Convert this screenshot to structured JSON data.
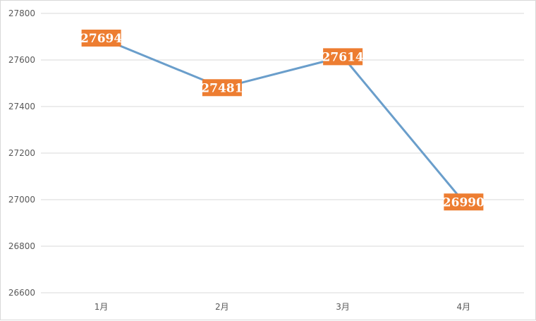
{
  "chart_data": {
    "type": "line",
    "categories": [
      "1月",
      "2月",
      "3月",
      "4月"
    ],
    "series": [
      {
        "values": [
          27694,
          27481,
          27614,
          26990
        ]
      }
    ],
    "y_ticks": [
      "27800",
      "27600",
      "27400",
      "27200",
      "27000",
      "26800",
      "26600"
    ],
    "ylim": [
      26600,
      27800
    ],
    "title": "",
    "xlabel": "",
    "ylabel": "",
    "grid": true,
    "legend": "none",
    "line_color": "#6a9ecb",
    "label_bg_color": "#ed7d31",
    "gridline_color": "#d9d9d9"
  }
}
